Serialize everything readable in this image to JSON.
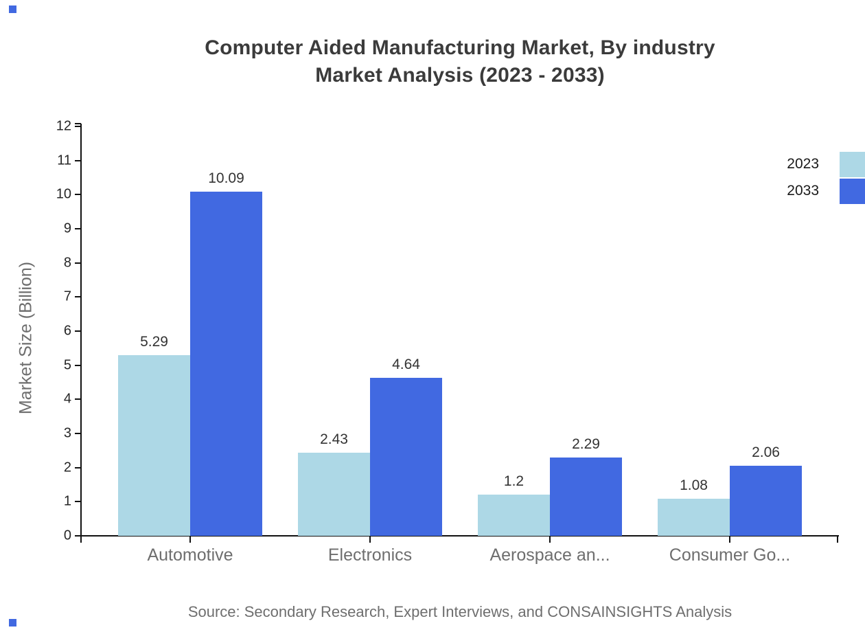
{
  "title": {
    "line1": "Computer Aided Manufacturing Market, By industry",
    "line2": "Market Analysis (2023 - 2033)"
  },
  "source": "Source: Secondary Research, Expert Interviews, and CONSAINSIGHTS Analysis",
  "y_axis": {
    "label": "Market Size (Billion)"
  },
  "legend": [
    {
      "label": "2023",
      "color": "#ADD8E6"
    },
    {
      "label": "2033",
      "color": "#4169E1"
    }
  ],
  "colors": {
    "series_2023": "#ADD8E6",
    "series_2033": "#4169E1",
    "title_text": "#3b3b3b",
    "axis_text": "#262626",
    "muted_text": "#6e6e6e",
    "value_text": "#333333"
  },
  "chart_data": {
    "type": "bar",
    "categories": [
      "Automotive",
      "Electronics",
      "Aerospace an...",
      "Consumer Go..."
    ],
    "series": [
      {
        "name": "2023",
        "color": "#ADD8E6",
        "values": [
          5.29,
          2.43,
          1.2,
          1.08
        ]
      },
      {
        "name": "2033",
        "color": "#4169E1",
        "values": [
          10.09,
          4.64,
          2.29,
          2.06
        ]
      }
    ],
    "title": "Computer Aided Manufacturing Market, By industry Market Analysis (2023 - 2033)",
    "xlabel": "",
    "ylabel": "Market Size (Billion)",
    "ylim": [
      0,
      12
    ],
    "ytick_step": 1,
    "yticks": [
      0,
      1,
      2,
      3,
      4,
      5,
      6,
      7,
      8,
      9,
      10,
      11,
      12
    ],
    "grid": false,
    "legend_position": "top-right",
    "value_labels": true
  }
}
